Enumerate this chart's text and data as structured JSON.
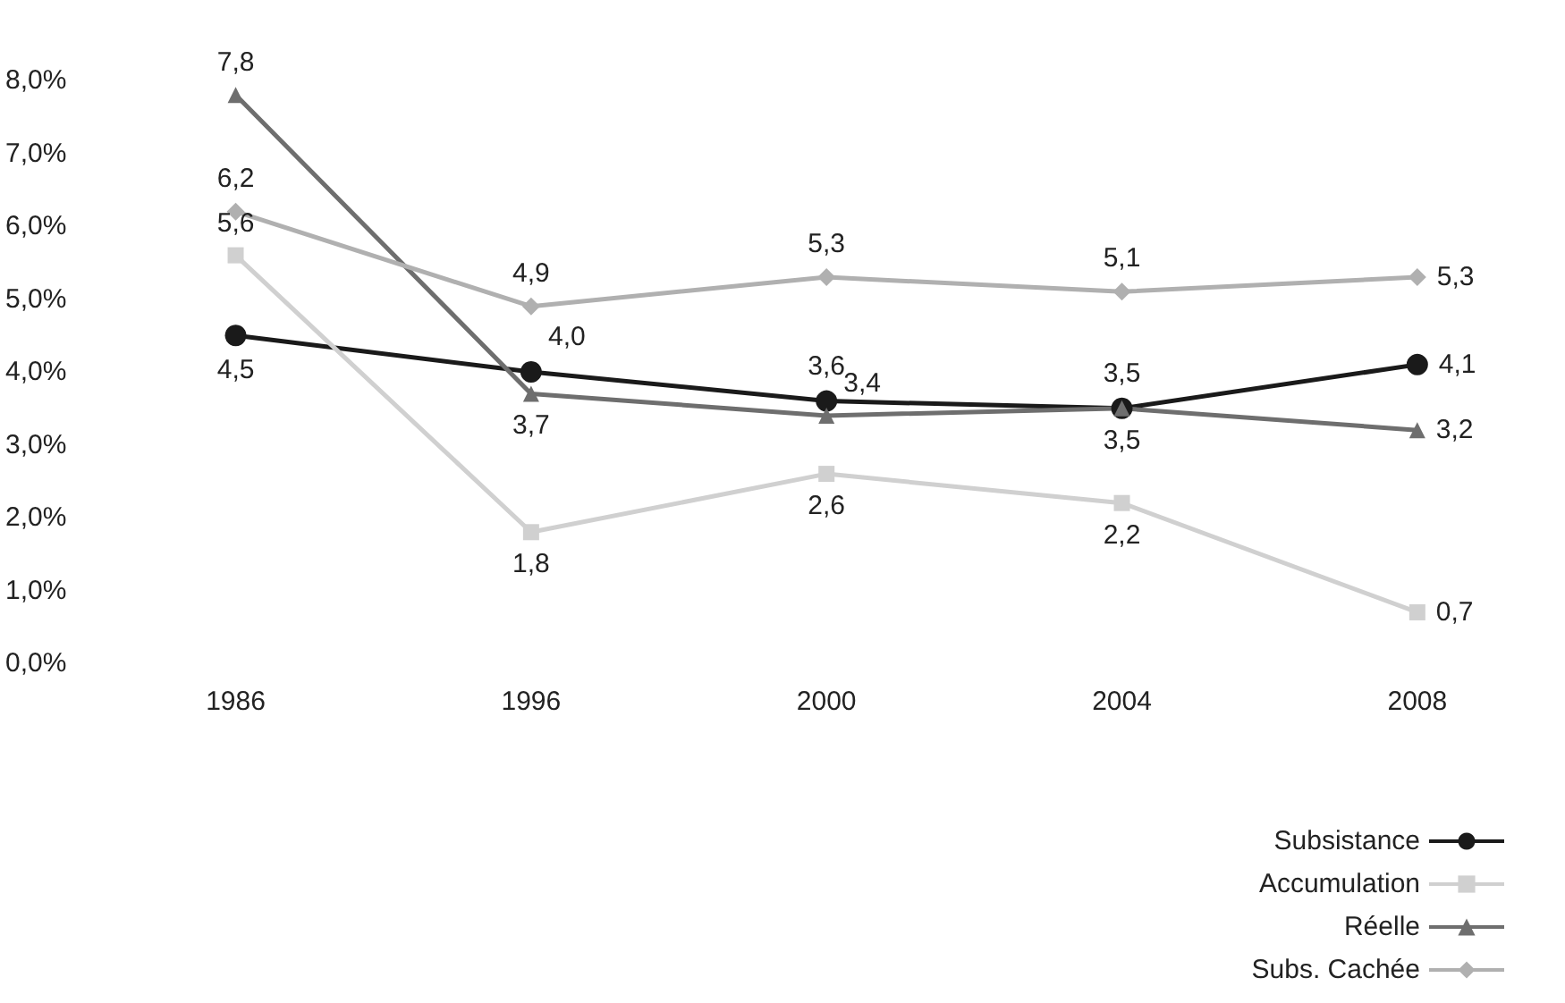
{
  "chart_data": {
    "type": "line",
    "categories": [
      "1986",
      "1996",
      "2000",
      "2004",
      "2008"
    ],
    "series": [
      {
        "name": "Subsistance",
        "color": "#1a1a1a",
        "marker": "circle",
        "values": [
          4.5,
          4.0,
          3.6,
          3.5,
          4.1
        ],
        "value_labels": [
          "4,5",
          "4,0",
          "3,6",
          "3,5",
          "4,1"
        ]
      },
      {
        "name": "Accumulation",
        "color": "#d0d0d0",
        "marker": "square",
        "values": [
          5.6,
          1.8,
          2.6,
          2.2,
          0.7
        ],
        "value_labels": [
          "5,6",
          "1,8",
          "2,6",
          "2,2",
          "0,7"
        ]
      },
      {
        "name": "Réelle",
        "color": "#6e6e6e",
        "marker": "triangle",
        "values": [
          7.8,
          3.7,
          3.4,
          3.5,
          3.2
        ],
        "value_labels": [
          "7,8",
          "3,7",
          "3,4",
          "3,5",
          "3,2"
        ]
      },
      {
        "name": "Subs. Cachée",
        "color": "#b0b0b0",
        "marker": "diamond",
        "values": [
          6.2,
          4.9,
          5.3,
          5.1,
          5.3
        ],
        "value_labels": [
          "6,2",
          "4,9",
          "5,3",
          "5,1",
          "5,3"
        ]
      }
    ],
    "ylim": [
      0,
      8
    ],
    "yticks": [
      {
        "value": 0,
        "label": "0,0%"
      },
      {
        "value": 1,
        "label": "1,0%"
      },
      {
        "value": 2,
        "label": "2,0%"
      },
      {
        "value": 3,
        "label": "3,0%"
      },
      {
        "value": 4,
        "label": "4,0%"
      },
      {
        "value": 5,
        "label": "5,0%"
      },
      {
        "value": 6,
        "label": "6,0%"
      },
      {
        "value": 7,
        "label": "7,0%"
      },
      {
        "value": 8,
        "label": "8,0%"
      }
    ],
    "grid": false,
    "legend": "bottom right"
  }
}
